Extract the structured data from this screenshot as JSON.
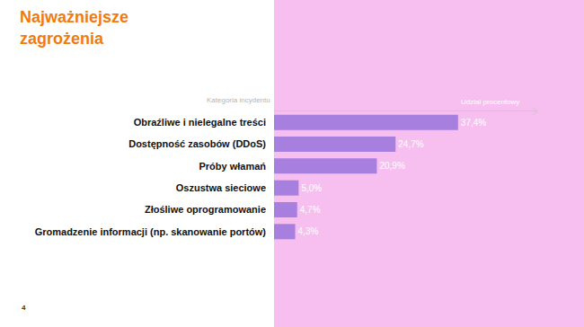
{
  "chart_data": {
    "type": "bar",
    "title": "Najważniejsze zagrożenia",
    "orientation": "horizontal",
    "x_label": "Udział procentowy",
    "y_label": "Kategoria incydentu",
    "categories": [
      "Obraźliwe i nielegalne treści",
      "Dostępność zasobów (DDoS)",
      "Próby włamań",
      "Oszustwa sieciowe",
      "Złośliwe oprogramowanie",
      "Gromadzenie informacji (np. skanowanie portów)"
    ],
    "values": [
      37.4,
      24.7,
      20.9,
      5.0,
      4.7,
      4.3
    ],
    "value_labels": [
      "37,4%",
      "24,7%",
      "20,9%",
      "5,0%",
      "4,7%",
      "4,3%"
    ],
    "color": "#a67fdf",
    "xlim": [
      0,
      53.5
    ],
    "tick_labels": "y",
    "grid": false,
    "data_labels": true
  },
  "page": {
    "number": 4
  }
}
